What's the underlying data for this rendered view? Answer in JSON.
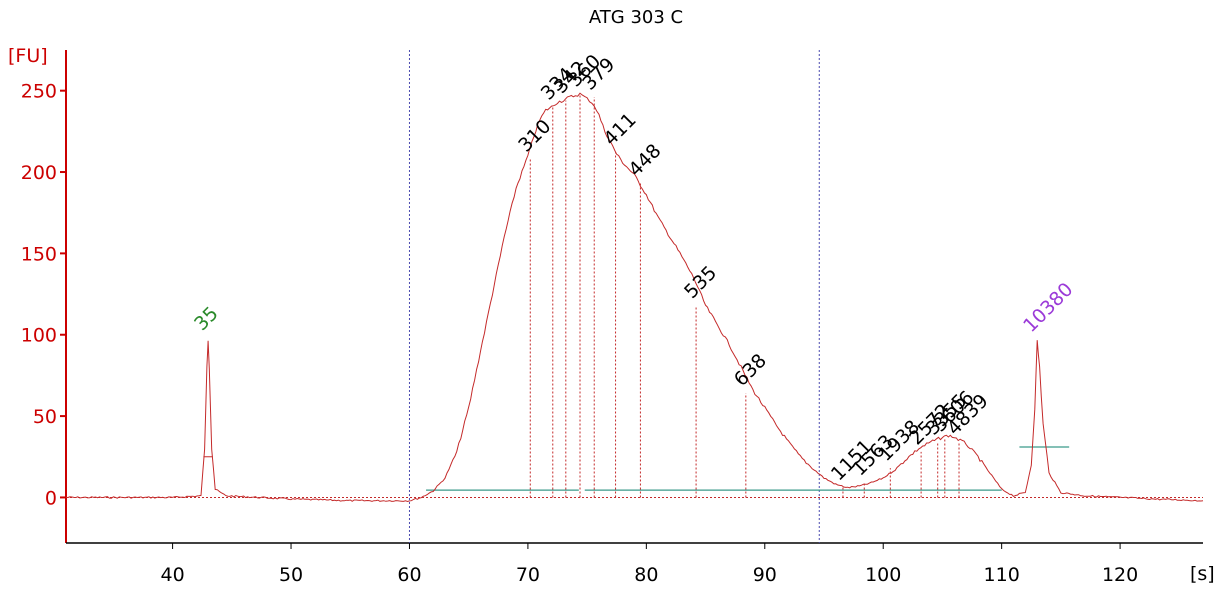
{
  "chart_data": {
    "type": "line",
    "title": "ATG 303 C",
    "ylabel": "[FU]",
    "xlabel": "[s]",
    "xlim": [
      31,
      127
    ],
    "ylim": [
      -28,
      275
    ],
    "yticks": [
      0,
      50,
      100,
      150,
      200,
      250
    ],
    "xticks": [
      40,
      50,
      60,
      70,
      80,
      90,
      100,
      110,
      120
    ],
    "colors": {
      "trace": "#c42a2a",
      "axis": "#cc0000",
      "baseline": "#3a9a8a",
      "region_marker": "#4b4bb0",
      "lower_marker": "#2a8a2a",
      "upper_marker": "#9b3ad8",
      "peak_label": "#000000"
    },
    "region_markers": [
      60.0,
      94.6
    ],
    "markers": [
      {
        "label": "35",
        "x": 43.0,
        "height": 97,
        "kind": "lower"
      },
      {
        "label": "10380",
        "x": 113.0,
        "height": 96,
        "kind": "upper"
      }
    ],
    "peaks": [
      {
        "label": "310",
        "x": 70.2,
        "y": 208
      },
      {
        "label": "334",
        "x": 72.1,
        "y": 240
      },
      {
        "label": "342",
        "x": 73.2,
        "y": 244
      },
      {
        "label": "360",
        "x": 74.4,
        "y": 248
      },
      {
        "label": "379",
        "x": 75.6,
        "y": 246
      },
      {
        "label": "411",
        "x": 77.4,
        "y": 212
      },
      {
        "label": "448",
        "x": 79.5,
        "y": 193
      },
      {
        "label": "535",
        "x": 84.2,
        "y": 118
      },
      {
        "label": "638",
        "x": 88.4,
        "y": 64
      },
      {
        "label": "1151",
        "x": 96.6,
        "y": 6
      },
      {
        "label": "1563",
        "x": 98.4,
        "y": 9
      },
      {
        "label": "1938",
        "x": 100.6,
        "y": 18
      },
      {
        "label": "2572",
        "x": 103.2,
        "y": 28
      },
      {
        "label": "3355",
        "x": 104.6,
        "y": 34
      },
      {
        "label": "3606",
        "x": 105.2,
        "y": 36
      },
      {
        "label": "4839",
        "x": 106.4,
        "y": 34
      }
    ],
    "series": [
      {
        "x": [
          31,
          35,
          40,
          42.4,
          42.7,
          42.9,
          43.0,
          43.1,
          43.3,
          43.6,
          44.5,
          50,
          55,
          58,
          60,
          61,
          62,
          63,
          64,
          65,
          66,
          67,
          68,
          69,
          70,
          70.5,
          71,
          71.5,
          72,
          72.5,
          73,
          73.5,
          74,
          74.4,
          74.8,
          75.2,
          75.6,
          76,
          76.5,
          77,
          77.5,
          78,
          79,
          80,
          81,
          82,
          83,
          84,
          85,
          86,
          87,
          88,
          89,
          90,
          91,
          92,
          93,
          94,
          95,
          96,
          97,
          98,
          99,
          100,
          101,
          102,
          103,
          104,
          105,
          105.5,
          106,
          107,
          108,
          109,
          110,
          111,
          112,
          112.5,
          112.8,
          113.0,
          113.2,
          113.5,
          114,
          115,
          117,
          120,
          123,
          127
        ],
        "y": [
          0,
          0,
          0,
          1,
          30,
          80,
          97,
          80,
          30,
          5,
          1,
          -1,
          -2,
          -2,
          -2,
          0,
          4,
          12,
          28,
          55,
          90,
          125,
          160,
          190,
          210,
          222,
          232,
          238,
          240,
          243,
          244,
          246,
          247,
          248,
          246,
          244,
          241,
          235,
          225,
          218,
          211,
          206,
          198,
          186,
          172,
          160,
          148,
          135,
          118,
          106,
          94,
          80,
          66,
          55,
          44,
          34,
          25,
          18,
          12,
          8,
          6,
          7,
          9,
          12,
          17,
          24,
          30,
          34,
          37,
          38,
          37,
          33,
          25,
          15,
          5,
          1,
          3,
          20,
          55,
          96,
          80,
          45,
          15,
          3,
          1,
          0,
          -1,
          -2
        ]
      }
    ]
  }
}
